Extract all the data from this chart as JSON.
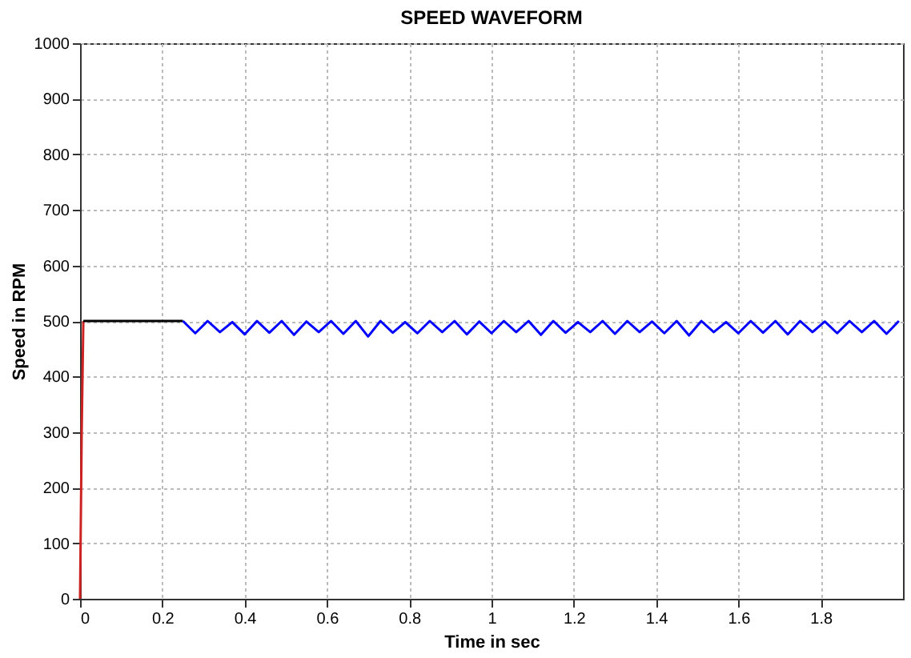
{
  "chart_data": {
    "type": "line",
    "title": "SPEED WAVEFORM",
    "xlabel": "Time in sec",
    "ylabel": "Speed in RPM",
    "xlim": [
      0,
      2
    ],
    "xticks": [
      0,
      0.2,
      0.4,
      0.6,
      0.8,
      1,
      1.2,
      1.4,
      1.6,
      1.8
    ],
    "ylim": [
      0,
      1000
    ],
    "yticks": [
      0,
      100,
      200,
      300,
      400,
      500,
      600,
      700,
      800,
      900,
      1000
    ],
    "grid": true,
    "line_style": "solid",
    "marker": "none",
    "series": [
      {
        "color": "#cc2222",
        "x": [
          0,
          0.004,
          0.008
        ],
        "values": [
          0,
          300,
          500
        ]
      },
      {
        "color": "#000000",
        "x": [
          0.008,
          0.25
        ],
        "values": [
          500,
          500
        ]
      },
      {
        "color": "#0000ff",
        "x": [
          0.25,
          0.28,
          0.31,
          0.34,
          0.37,
          0.4,
          0.43,
          0.46,
          0.49,
          0.52,
          0.55,
          0.58,
          0.61,
          0.64,
          0.67,
          0.7,
          0.73,
          0.76,
          0.79,
          0.82,
          0.85,
          0.88,
          0.91,
          0.94,
          0.97,
          1.0,
          1.03,
          1.06,
          1.09,
          1.12,
          1.15,
          1.18,
          1.21,
          1.24,
          1.27,
          1.3,
          1.33,
          1.36,
          1.39,
          1.42,
          1.45,
          1.48,
          1.51,
          1.54,
          1.57,
          1.6,
          1.63,
          1.66,
          1.69,
          1.72,
          1.75,
          1.78,
          1.81,
          1.84,
          1.87,
          1.9,
          1.93,
          1.96,
          1.99
        ],
        "values": [
          500,
          478,
          500,
          480,
          498,
          476,
          500,
          479,
          500,
          475,
          499,
          480,
          500,
          477,
          500,
          472,
          500,
          479,
          498,
          478,
          500,
          480,
          500,
          476,
          499,
          478,
          500,
          480,
          500,
          475,
          500,
          479,
          498,
          480,
          500,
          477,
          500,
          480,
          499,
          478,
          500,
          474,
          500,
          480,
          498,
          478,
          500,
          479,
          500,
          476,
          500,
          480,
          499,
          478,
          500,
          480,
          500,
          477,
          500
        ]
      }
    ]
  }
}
